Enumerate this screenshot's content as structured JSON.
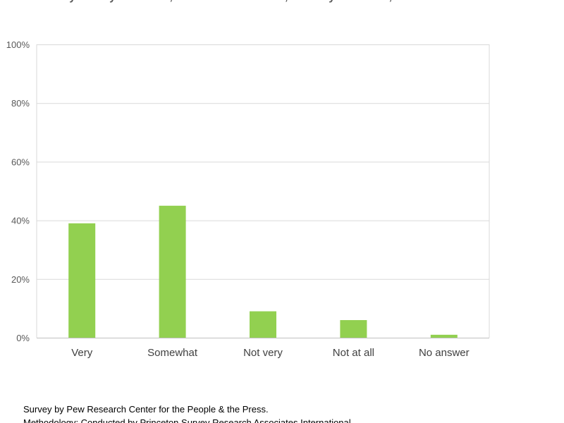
{
  "chart_data": {
    "type": "bar",
    "title": "Are you very confident, somewhat confident, not very confident, or not at all confident?",
    "categories": [
      "Very",
      "Somewhat",
      "Not very",
      "Not at all",
      "No answer"
    ],
    "values": [
      39,
      45,
      9,
      6,
      1
    ],
    "ylim": [
      0,
      100
    ],
    "yticks": [
      0,
      20,
      40,
      60,
      80,
      100
    ],
    "ytick_labels": [
      "0%",
      "20%",
      "40%",
      "60%",
      "80%",
      "100%"
    ],
    "grid": true,
    "legend": "none",
    "bar_color": "#92d050"
  },
  "footnotes": {
    "source": "Survey by Pew Research Center for the People & the Press.",
    "methodology": "Methodology: Conducted by Princeton Survey Research Associates International"
  }
}
